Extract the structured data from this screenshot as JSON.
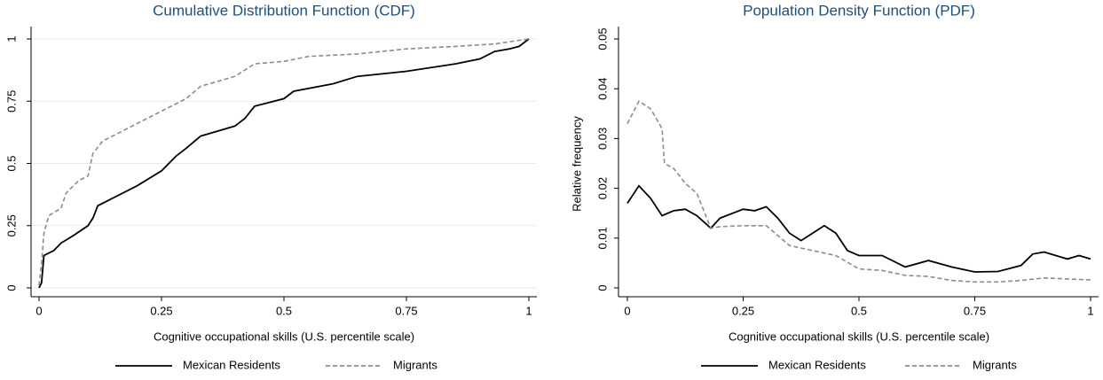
{
  "chart_data": [
    {
      "type": "line",
      "title": "Cumulative Distribution Function (CDF)",
      "x_label": "Cognitive occupational skills (U.S. percentile scale)",
      "xlim": [
        0,
        1
      ],
      "xticks": [
        0,
        0.25,
        0.5,
        0.75,
        1
      ],
      "ylim": [
        0,
        1
      ],
      "yticks": [
        0,
        0.25,
        0.5,
        0.75,
        1
      ],
      "grid": true,
      "series": [
        {
          "name": "Mexican Residents",
          "color": "#000000",
          "dashed": false,
          "x": [
            0,
            0.005,
            0.01,
            0.03,
            0.045,
            0.07,
            0.1,
            0.11,
            0.12,
            0.15,
            0.2,
            0.25,
            0.28,
            0.3,
            0.33,
            0.4,
            0.42,
            0.44,
            0.5,
            0.52,
            0.6,
            0.65,
            0.75,
            0.85,
            0.9,
            0.93,
            0.96,
            0.98,
            1
          ],
          "values": [
            0,
            0.02,
            0.13,
            0.15,
            0.18,
            0.21,
            0.25,
            0.28,
            0.33,
            0.36,
            0.41,
            0.47,
            0.53,
            0.56,
            0.61,
            0.65,
            0.68,
            0.73,
            0.76,
            0.79,
            0.82,
            0.85,
            0.87,
            0.9,
            0.92,
            0.95,
            0.96,
            0.97,
            1
          ]
        },
        {
          "name": "Migrants",
          "color": "#8c8c8c",
          "dashed": true,
          "x": [
            0,
            0.005,
            0.01,
            0.02,
            0.045,
            0.055,
            0.08,
            0.1,
            0.11,
            0.13,
            0.16,
            0.2,
            0.25,
            0.3,
            0.33,
            0.4,
            0.44,
            0.5,
            0.55,
            0.65,
            0.75,
            0.85,
            0.93,
            1
          ],
          "values": [
            0.01,
            0.1,
            0.22,
            0.29,
            0.32,
            0.38,
            0.43,
            0.45,
            0.54,
            0.59,
            0.62,
            0.66,
            0.71,
            0.76,
            0.81,
            0.85,
            0.9,
            0.91,
            0.93,
            0.94,
            0.96,
            0.97,
            0.98,
            1
          ]
        }
      ]
    },
    {
      "type": "line",
      "title": "Population Density Function (PDF)",
      "x_label": "Cognitive occupational skills (U.S. percentile scale)",
      "y_label": "Relative frequency",
      "xlim": [
        0,
        1
      ],
      "xticks": [
        0,
        0.25,
        0.5,
        0.75,
        1
      ],
      "ylim": [
        0,
        0.05
      ],
      "yticks": [
        0,
        0.01,
        0.02,
        0.03,
        0.04,
        0.05
      ],
      "grid": false,
      "series": [
        {
          "name": "Mexican Residents",
          "color": "#000000",
          "dashed": false,
          "x": [
            0,
            0.025,
            0.05,
            0.075,
            0.1,
            0.125,
            0.15,
            0.18,
            0.2,
            0.25,
            0.275,
            0.3,
            0.325,
            0.35,
            0.375,
            0.4,
            0.425,
            0.45,
            0.475,
            0.5,
            0.55,
            0.6,
            0.65,
            0.7,
            0.75,
            0.8,
            0.85,
            0.875,
            0.9,
            0.925,
            0.95,
            0.975,
            1
          ],
          "values": [
            0.017,
            0.0205,
            0.018,
            0.0145,
            0.0155,
            0.0158,
            0.0145,
            0.012,
            0.014,
            0.0158,
            0.0155,
            0.0163,
            0.014,
            0.011,
            0.0095,
            0.011,
            0.0125,
            0.011,
            0.0075,
            0.0065,
            0.0065,
            0.0042,
            0.0055,
            0.0042,
            0.0032,
            0.0033,
            0.0045,
            0.0068,
            0.0072,
            0.0065,
            0.0058,
            0.0065,
            0.0058
          ]
        },
        {
          "name": "Migrants",
          "color": "#8c8c8c",
          "dashed": true,
          "x": [
            0,
            0.025,
            0.05,
            0.075,
            0.08,
            0.1,
            0.125,
            0.15,
            0.18,
            0.2,
            0.25,
            0.3,
            0.35,
            0.4,
            0.45,
            0.5,
            0.55,
            0.6,
            0.65,
            0.7,
            0.75,
            0.8,
            0.85,
            0.9,
            1
          ],
          "values": [
            0.033,
            0.0375,
            0.036,
            0.032,
            0.025,
            0.024,
            0.021,
            0.019,
            0.012,
            0.0123,
            0.0125,
            0.0125,
            0.0085,
            0.0075,
            0.0065,
            0.0038,
            0.0035,
            0.0025,
            0.0023,
            0.0015,
            0.0012,
            0.0012,
            0.0015,
            0.002,
            0.0016
          ]
        }
      ]
    }
  ]
}
